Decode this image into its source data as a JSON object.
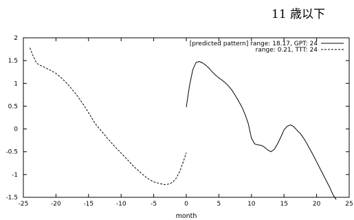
{
  "chart_data": {
    "type": "line",
    "title": "11 歳以下",
    "xlabel": "month",
    "ylabel": "",
    "xlim": [
      -25,
      25
    ],
    "ylim": [
      -1.5,
      2
    ],
    "xticks": [
      "-25",
      "-20",
      "-15",
      "-10",
      "-5",
      "0",
      "5",
      "10",
      "15",
      "20",
      "25"
    ],
    "yticks": [
      "2",
      "1.5",
      "1",
      "0.5",
      "0",
      "-0.5",
      "-1",
      "-1.5"
    ],
    "grid": false,
    "legend_position": "top-right",
    "series": [
      {
        "name": "[predicted pattern] range: 18.17, GPT: 24",
        "style": "solid",
        "color": "#000000",
        "x": [
          0,
          0.5,
          1,
          1.5,
          2,
          2.5,
          3,
          3.5,
          4,
          4.5,
          5,
          5.5,
          6,
          6.5,
          7,
          7.5,
          8,
          8.5,
          9,
          9.5,
          10,
          10.5,
          11,
          11.5,
          12,
          12.5,
          13,
          13.5,
          14,
          14.5,
          15,
          15.5,
          16,
          16.5,
          17,
          17.5,
          18,
          18.5,
          19,
          19.5,
          20,
          20.5,
          21,
          21.5,
          22,
          22.5,
          23
        ],
        "y": [
          0.48,
          0.95,
          1.3,
          1.46,
          1.48,
          1.45,
          1.4,
          1.33,
          1.25,
          1.18,
          1.12,
          1.07,
          1.01,
          0.94,
          0.85,
          0.74,
          0.62,
          0.49,
          0.33,
          0.12,
          -0.2,
          -0.33,
          -0.35,
          -0.36,
          -0.4,
          -0.46,
          -0.5,
          -0.45,
          -0.33,
          -0.18,
          -0.02,
          0.06,
          0.09,
          0.05,
          -0.03,
          -0.1,
          -0.2,
          -0.32,
          -0.45,
          -0.58,
          -0.72,
          -0.86,
          -1.0,
          -1.14,
          -1.28,
          -1.44,
          -1.55
        ]
      },
      {
        "name": "range:  0.21, TTT: 24",
        "style": "dashed",
        "color": "#000000",
        "x": [
          -24,
          -23.5,
          -23,
          -22.5,
          -22,
          -21,
          -20,
          -19,
          -18,
          -17,
          -16,
          -15,
          -14,
          -13,
          -12,
          -11,
          -10,
          -9,
          -8,
          -7,
          -6,
          -5,
          -4,
          -3.5,
          -3,
          -2.5,
          -2,
          -1.5,
          -1,
          -0.5,
          0
        ],
        "y": [
          1.78,
          1.6,
          1.45,
          1.4,
          1.37,
          1.3,
          1.22,
          1.1,
          0.95,
          0.78,
          0.58,
          0.36,
          0.12,
          -0.05,
          -0.22,
          -0.38,
          -0.53,
          -0.68,
          -0.83,
          -0.96,
          -1.08,
          -1.16,
          -1.2,
          -1.22,
          -1.22,
          -1.2,
          -1.16,
          -1.07,
          -0.93,
          -0.74,
          -0.52
        ]
      }
    ]
  }
}
